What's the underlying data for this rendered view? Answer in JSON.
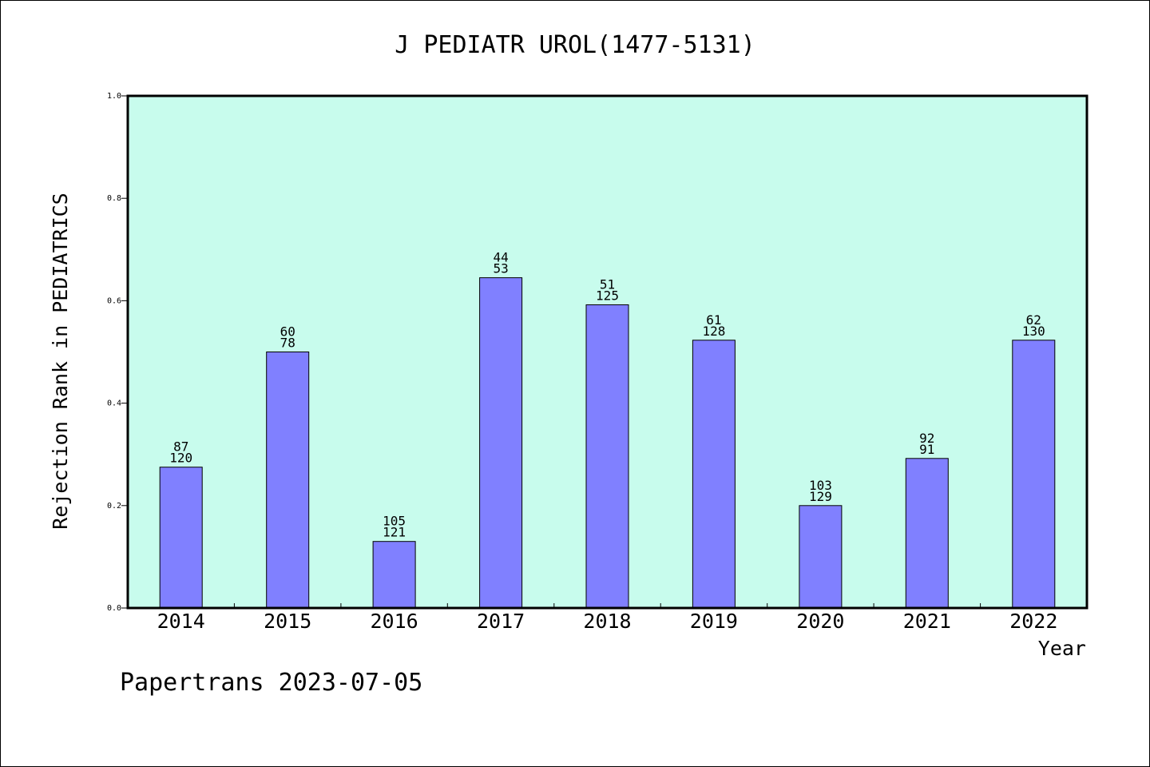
{
  "chart_data": {
    "type": "bar",
    "title": "J PEDIATR UROL(1477-5131)",
    "xlabel": "Year",
    "ylabel": "Rejection Rank in PEDIATRICS",
    "ylim": [
      0,
      1.0
    ],
    "yticks": [
      "0.0",
      "0.2",
      "0.4",
      "0.6",
      "0.8",
      "1.0"
    ],
    "categories": [
      "2014",
      "2015",
      "2016",
      "2017",
      "2018",
      "2019",
      "2020",
      "2021",
      "2022"
    ],
    "values": [
      0.275,
      0.5,
      0.13,
      0.645,
      0.592,
      0.523,
      0.2,
      0.292,
      0.523
    ],
    "labels_top": [
      "87",
      "60",
      "105",
      "44",
      "51",
      "61",
      "103",
      "92",
      "62"
    ],
    "labels_bottom": [
      "120",
      "78",
      "121",
      "53",
      "125",
      "128",
      "129",
      "91",
      "130"
    ],
    "grid": false,
    "colors": {
      "plot_background": "#c8fced",
      "bar_fill": "#8080ff",
      "bar_stroke": "#000000"
    }
  },
  "footer": {
    "watermark": "Papertrans 2023-07-05"
  }
}
